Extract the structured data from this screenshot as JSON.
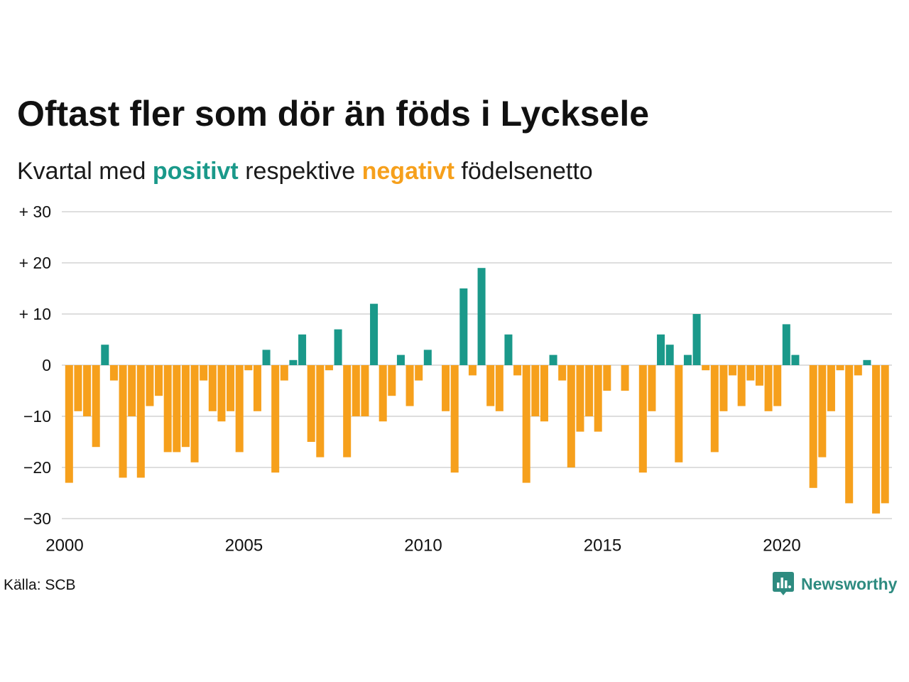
{
  "chart_data": {
    "type": "bar",
    "title": "Oftast fler som dör än föds i Lycksele",
    "subtitle": {
      "before": "Kvartal med ",
      "positive": "positivt",
      "between": " respektive ",
      "negative": "negativt",
      "after": " födelsenetto"
    },
    "xlim": [
      2000,
      2023
    ],
    "ylim": [
      -30,
      30
    ],
    "grid": "horizontal",
    "legend": "none",
    "colors": {
      "positive": "#1a998a",
      "negative": "#f6a01c"
    },
    "x_ticks": [
      {
        "value": 2000,
        "label": "2000"
      },
      {
        "value": 2005,
        "label": "2005"
      },
      {
        "value": 2010,
        "label": "2010"
      },
      {
        "value": 2015,
        "label": "2015"
      },
      {
        "value": 2020,
        "label": "2020"
      }
    ],
    "y_ticks": [
      {
        "value": 30,
        "label": "+ 30"
      },
      {
        "value": 20,
        "label": "+ 20"
      },
      {
        "value": 10,
        "label": "+ 10"
      },
      {
        "value": 0,
        "label": "0"
      },
      {
        "value": -10,
        "label": "−10"
      },
      {
        "value": -20,
        "label": "−20"
      },
      {
        "value": -30,
        "label": "−30"
      }
    ],
    "x": [
      2000,
      2000.25,
      2000.5,
      2000.75,
      2001,
      2001.25,
      2001.5,
      2001.75,
      2002,
      2002.25,
      2002.5,
      2002.75,
      2003,
      2003.25,
      2003.5,
      2003.75,
      2004,
      2004.25,
      2004.5,
      2004.75,
      2005,
      2005.25,
      2005.5,
      2005.75,
      2006,
      2006.25,
      2006.5,
      2006.75,
      2007,
      2007.25,
      2007.5,
      2007.75,
      2008,
      2008.25,
      2008.5,
      2008.75,
      2009,
      2009.25,
      2009.5,
      2009.75,
      2010,
      2010.25,
      2010.5,
      2010.75,
      2011,
      2011.25,
      2011.5,
      2011.75,
      2012,
      2012.25,
      2012.5,
      2012.75,
      2013,
      2013.25,
      2013.5,
      2013.75,
      2014,
      2014.25,
      2014.5,
      2014.75,
      2015,
      2015.25,
      2015.5,
      2015.75,
      2016,
      2016.25,
      2016.5,
      2016.75,
      2017,
      2017.25,
      2017.5,
      2017.75,
      2018,
      2018.25,
      2018.5,
      2018.75,
      2019,
      2019.25,
      2019.5,
      2019.75,
      2020,
      2020.25,
      2020.5,
      2020.75,
      2021,
      2021.25,
      2021.5,
      2021.75,
      2022,
      2022.25,
      2022.5,
      2022.75
    ],
    "values": [
      -23,
      -9,
      -10,
      -16,
      4,
      -3,
      -22,
      -10,
      -22,
      -8,
      -6,
      -17,
      -17,
      -16,
      -19,
      -3,
      -9,
      -11,
      -9,
      -17,
      -1,
      -9,
      3,
      -21,
      -3,
      1,
      6,
      -15,
      -18,
      -1,
      7,
      -18,
      -10,
      -10,
      12,
      -11,
      -6,
      2,
      -8,
      -3,
      3,
      0,
      -9,
      -21,
      15,
      -2,
      19,
      -8,
      -9,
      6,
      -2,
      -23,
      -10,
      -11,
      2,
      -3,
      -20,
      -13,
      -10,
      -13,
      -5,
      0,
      -5,
      0,
      -21,
      -9,
      6,
      4,
      -19,
      2,
      10,
      -1,
      -17,
      -9,
      -2,
      -8,
      -3,
      -4,
      -9,
      -8,
      8,
      2,
      0,
      -24,
      -18,
      -9,
      -1,
      -27,
      -2,
      1,
      -29,
      -27
    ]
  },
  "footer": {
    "source": "Källa: SCB",
    "brand": "Newsworthy",
    "brand_icon": "newsworthy-logo-icon"
  },
  "theme": {
    "text": "#111111",
    "grid": "#dedede",
    "brand": "#2e8b80"
  }
}
